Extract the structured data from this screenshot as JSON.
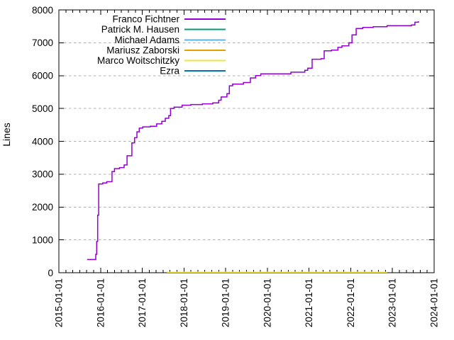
{
  "chart_data": {
    "type": "line",
    "title": "",
    "xlabel": "",
    "ylabel": "Lines",
    "grid": {
      "horizontal": true,
      "vertical": false,
      "style": "dashed",
      "color": "#b0b0b0"
    },
    "legend_position": "top-center-inside",
    "y_axis": {
      "min": 0,
      "max": 8000,
      "tick_step": 1000,
      "tick_labels": [
        "0",
        "1000",
        "2000",
        "3000",
        "4000",
        "5000",
        "6000",
        "7000",
        "8000"
      ]
    },
    "x_axis": {
      "tick_labels": [
        "2015-01-01",
        "2016-01-01",
        "2017-01-01",
        "2018-01-01",
        "2019-01-01",
        "2020-01-01",
        "2021-01-01",
        "2022-01-01",
        "2023-01-01",
        "2024-01-01"
      ],
      "minor_ticks_per_interval": 5,
      "labels_rotated_degrees": -90
    },
    "series": [
      {
        "name": "Franco Fichtner",
        "color": "#9400d3",
        "step": true,
        "points": [
          [
            "2015-09-05",
            400
          ],
          [
            "2015-11-20",
            560
          ],
          [
            "2015-11-28",
            950
          ],
          [
            "2015-12-06",
            1750
          ],
          [
            "2015-12-15",
            2700
          ],
          [
            "2016-01-20",
            2735
          ],
          [
            "2016-02-25",
            2770
          ],
          [
            "2016-04-10",
            3080
          ],
          [
            "2016-05-01",
            3170
          ],
          [
            "2016-06-15",
            3200
          ],
          [
            "2016-07-25",
            3280
          ],
          [
            "2016-08-20",
            3560
          ],
          [
            "2016-10-01",
            3950
          ],
          [
            "2016-10-25",
            4110
          ],
          [
            "2016-11-15",
            4290
          ],
          [
            "2016-12-05",
            4400
          ],
          [
            "2017-01-05",
            4440
          ],
          [
            "2017-03-10",
            4460
          ],
          [
            "2017-05-05",
            4530
          ],
          [
            "2017-06-20",
            4610
          ],
          [
            "2017-07-20",
            4700
          ],
          [
            "2017-08-20",
            4780
          ],
          [
            "2017-09-05",
            5000
          ],
          [
            "2017-10-05",
            5040
          ],
          [
            "2017-12-15",
            5100
          ],
          [
            "2018-03-01",
            5120
          ],
          [
            "2018-06-10",
            5140
          ],
          [
            "2018-09-10",
            5170
          ],
          [
            "2018-11-01",
            5250
          ],
          [
            "2018-11-22",
            5350
          ],
          [
            "2019-01-12",
            5450
          ],
          [
            "2019-02-03",
            5690
          ],
          [
            "2019-03-01",
            5740
          ],
          [
            "2019-06-05",
            5790
          ],
          [
            "2019-08-05",
            5930
          ],
          [
            "2019-09-20",
            6000
          ],
          [
            "2019-11-05",
            6055
          ],
          [
            "2020-07-25",
            6105
          ],
          [
            "2020-11-25",
            6160
          ],
          [
            "2020-12-20",
            6225
          ],
          [
            "2021-01-28",
            6500
          ],
          [
            "2021-04-15",
            6515
          ],
          [
            "2021-05-12",
            6755
          ],
          [
            "2021-07-15",
            6775
          ],
          [
            "2021-09-10",
            6860
          ],
          [
            "2021-10-15",
            6905
          ],
          [
            "2021-12-15",
            7000
          ],
          [
            "2022-01-12",
            7240
          ],
          [
            "2022-02-18",
            7435
          ],
          [
            "2022-04-15",
            7465
          ],
          [
            "2022-07-15",
            7490
          ],
          [
            "2022-11-15",
            7520
          ],
          [
            "2023-06-15",
            7540
          ],
          [
            "2023-07-15",
            7625
          ],
          [
            "2023-08-15",
            7655
          ]
        ]
      },
      {
        "name": "Patrick M. Hausen",
        "color": "#009e73",
        "step": true,
        "points": []
      },
      {
        "name": "Michael Adams",
        "color": "#56b4e9",
        "step": true,
        "points": []
      },
      {
        "name": "Mariusz Zaborski",
        "color": "#e69f00",
        "step": true,
        "points": []
      },
      {
        "name": "Marco Woitschitzky",
        "color": "#f0e442",
        "step": true,
        "points": [
          [
            "2017-08-03",
            15
          ],
          [
            "2022-11-10",
            20
          ]
        ]
      },
      {
        "name": "Ezra",
        "color": "#0072b2",
        "step": true,
        "points": []
      }
    ]
  }
}
